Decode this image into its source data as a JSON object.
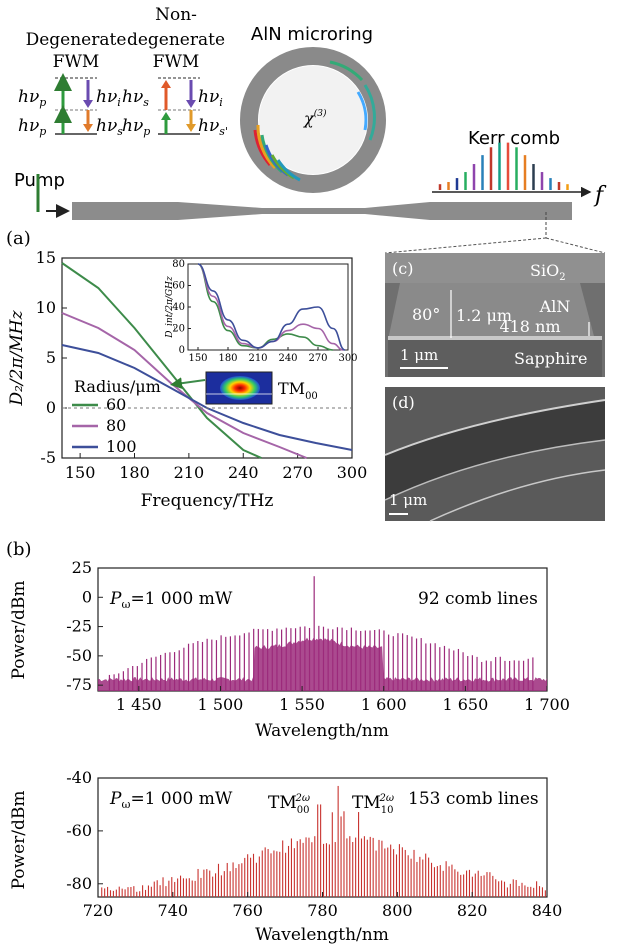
{
  "schematic": {
    "degenerate_title_1": "Degenerate",
    "degenerate_title_2": "FWM",
    "nondegenerate_title_1": "Non-",
    "nondegenerate_title_2": "degenerate",
    "nondegenerate_title_3": "FWM",
    "hv_p": "hν",
    "sub_p": "p",
    "sub_i": "i",
    "sub_s": "s",
    "sub_s_prime": "s'",
    "microring_title": "AlN microring",
    "chi3": "χ",
    "chi3_sup": "(3)",
    "pump_label": "Pump",
    "kerr_label": "Kerr comb",
    "f_label": "f",
    "panel_a": "(a)",
    "panel_b": "(b)",
    "panel_c": "(c)",
    "panel_d": "(d)",
    "colors": {
      "pump": "#2e7d32",
      "ring": "#808080",
      "waveguide": "#8c8c8c"
    }
  },
  "sem_c": {
    "sio2": "SiO",
    "sio2_sub": "2",
    "aln": "AlN",
    "thickness": "418 nm",
    "height": "1.2 μm",
    "angle": "80°",
    "scale": "1 μm",
    "sapphire": "Sapphire"
  },
  "sem_d": {
    "scale": "1 μm"
  },
  "chart_data": [
    {
      "type": "line",
      "id": "dispersion",
      "xlabel": "Frequency/THz",
      "ylabel": "D₂/2π/MHz",
      "xlim": [
        140,
        300
      ],
      "ylim": [
        -5,
        15
      ],
      "xticks": [
        150,
        180,
        210,
        240,
        270,
        300
      ],
      "yticks": [
        -5,
        0,
        5,
        10,
        15
      ],
      "legend_title": "Radius/μm",
      "mode_label": "TM",
      "mode_sub": "00",
      "series": [
        {
          "name": "60",
          "color": "#3d8b4a",
          "x": [
            140,
            160,
            180,
            200,
            220,
            240,
            250
          ],
          "y": [
            14.5,
            12,
            8,
            3.5,
            -1,
            -4.2,
            -5
          ]
        },
        {
          "name": "80",
          "color": "#a565a8",
          "x": [
            140,
            160,
            180,
            200,
            220,
            240,
            260,
            275
          ],
          "y": [
            9.5,
            8,
            5.8,
            2.5,
            -0.5,
            -2.5,
            -3.9,
            -5
          ]
        },
        {
          "name": "100",
          "color": "#3d4f9a",
          "x": [
            140,
            160,
            180,
            200,
            220,
            240,
            260,
            280,
            300
          ],
          "y": [
            6.3,
            5.5,
            4,
            2,
            0,
            -1.5,
            -2.7,
            -3.5,
            -4.2
          ]
        }
      ]
    },
    {
      "type": "line",
      "id": "dispersion_inset",
      "ylabel": "D_int/2π/GHz",
      "xlim": [
        140,
        300
      ],
      "ylim": [
        0,
        80
      ],
      "xticks": [
        150,
        180,
        210,
        240,
        270,
        300
      ],
      "yticks": [
        0,
        20,
        40,
        60,
        80
      ],
      "series": [
        {
          "name": "60",
          "color": "#3d8b4a",
          "x": [
            150,
            165,
            180,
            195,
            210,
            225,
            240,
            255,
            270,
            285
          ],
          "y": [
            80,
            45,
            18,
            4,
            2,
            10,
            15,
            12,
            4,
            0
          ]
        },
        {
          "name": "80",
          "color": "#a565a8",
          "x": [
            150,
            165,
            180,
            195,
            210,
            225,
            240,
            255,
            270,
            285,
            295
          ],
          "y": [
            80,
            50,
            22,
            6,
            2,
            8,
            18,
            24,
            20,
            6,
            0
          ]
        },
        {
          "name": "100",
          "color": "#3d4f9a",
          "x": [
            150,
            165,
            180,
            195,
            210,
            225,
            240,
            255,
            270,
            285,
            297
          ],
          "y": [
            80,
            55,
            28,
            9,
            2,
            8,
            24,
            38,
            40,
            20,
            0
          ]
        }
      ]
    },
    {
      "type": "line",
      "id": "spectrum_ir",
      "xlabel": "Wavelength/nm",
      "ylabel": "Power/dBm",
      "xlim": [
        1425,
        1700
      ],
      "ylim": [
        -80,
        25
      ],
      "xticks": [
        "1 450",
        "1 500",
        "1 550",
        "1 600",
        "1 650",
        "1 700"
      ],
      "xtick_values": [
        1450,
        1500,
        1550,
        1600,
        1650,
        1700
      ],
      "yticks": [
        25,
        0,
        -25,
        -50,
        -75
      ],
      "power_label": "P",
      "power_sub": "ω",
      "power_value": "=1 000 mW",
      "comb_lines": "92 comb lines",
      "color": "#9c2a7b"
    },
    {
      "type": "line",
      "id": "spectrum_visible",
      "xlabel": "Wavelength/nm",
      "ylabel": "Power/dBm",
      "xlim": [
        720,
        840
      ],
      "ylim": [
        -85,
        -40
      ],
      "xticks": [
        720,
        740,
        760,
        780,
        800,
        820,
        840
      ],
      "yticks": [
        -40,
        -60,
        -80
      ],
      "power_label": "P",
      "power_sub": "ω",
      "power_value": "=1 000 mW",
      "mode1": "TM",
      "mode1_sub": "00",
      "mode1_sup": "2ω",
      "mode2": "TM",
      "mode2_sub": "10",
      "mode2_sup": "2ω",
      "comb_lines": "153 comb lines",
      "color": "#c8322e"
    }
  ]
}
